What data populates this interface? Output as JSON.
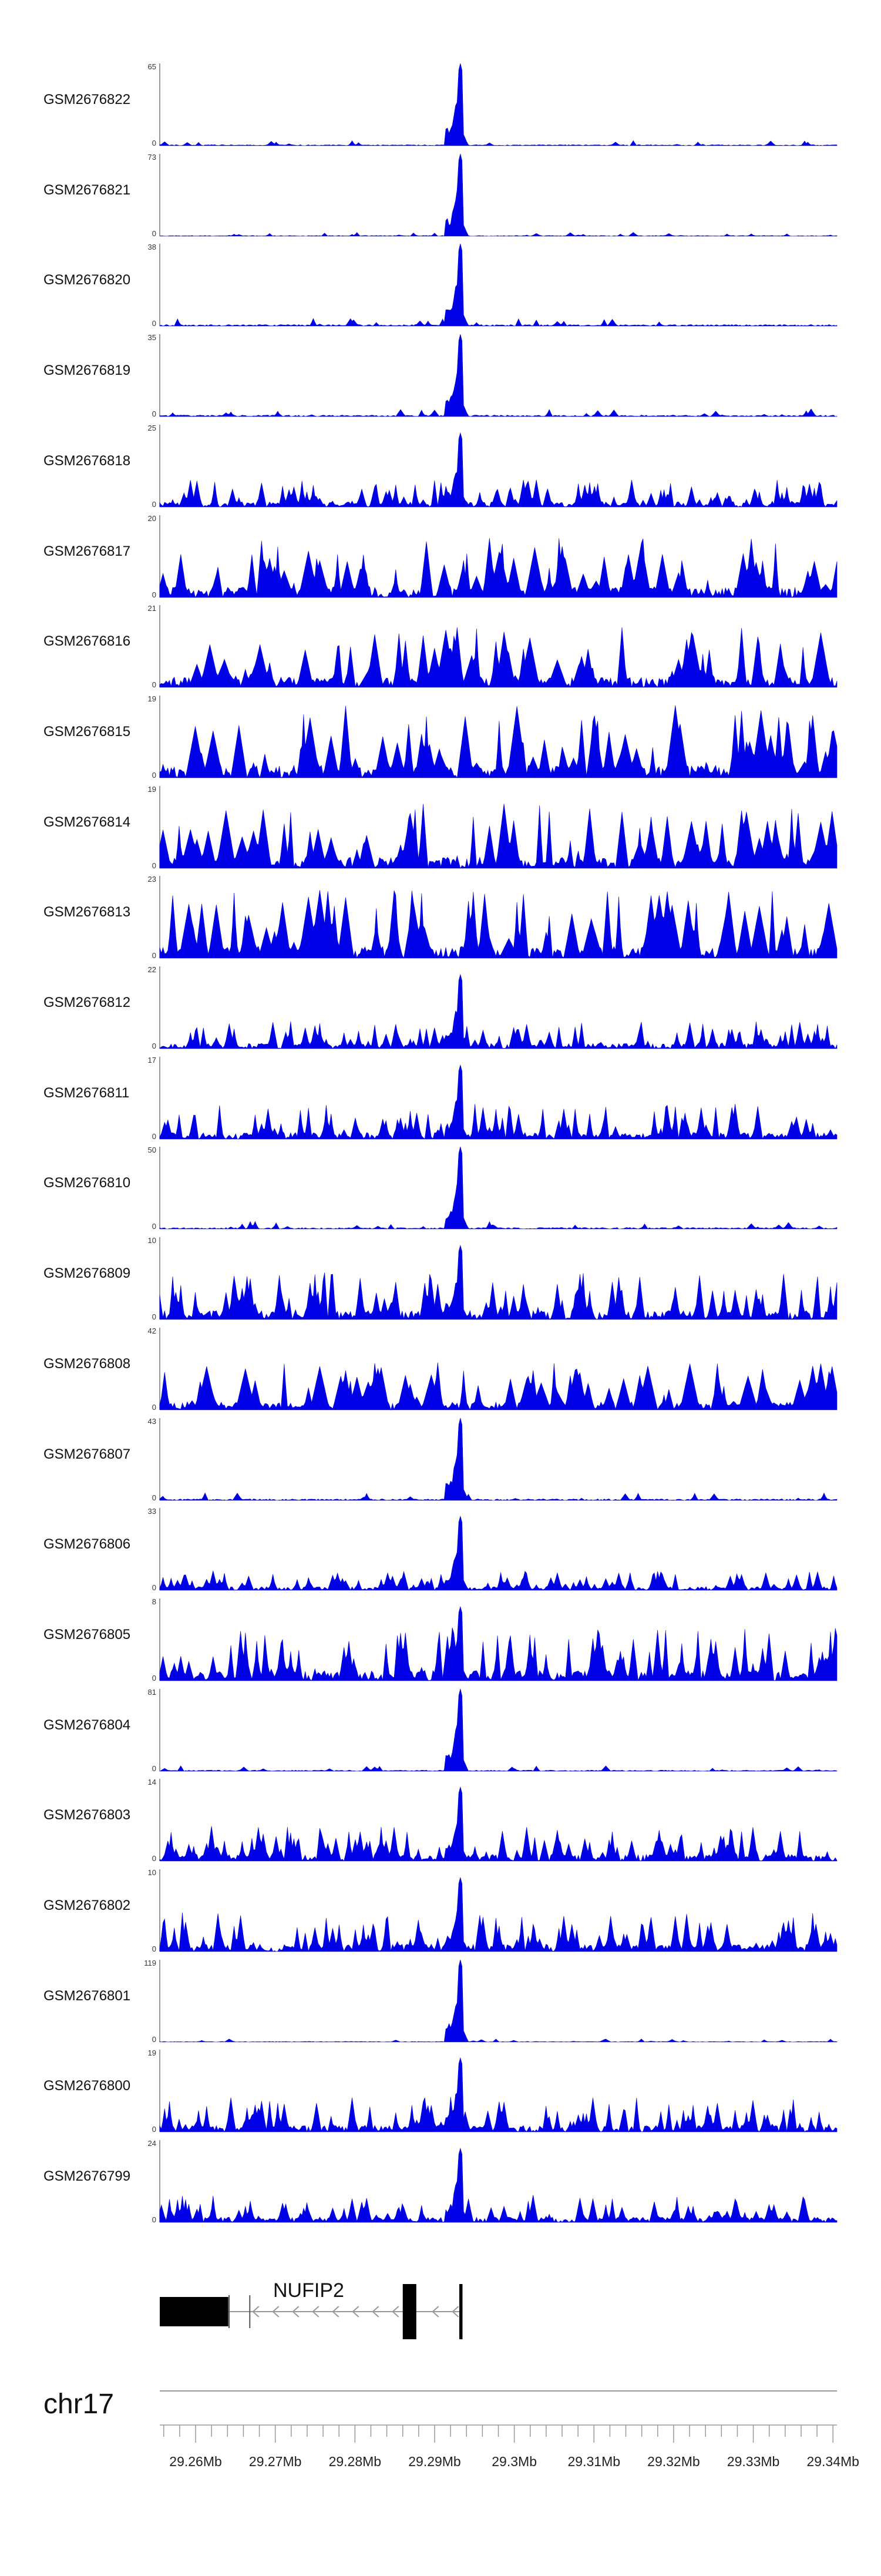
{
  "chart_data": {
    "type": "area",
    "title": "",
    "chromosome": "chr17",
    "fill_color": "#0000e6",
    "x_range_mb": [
      29.2555,
      29.3405
    ],
    "x_ticks": [
      29.26,
      29.27,
      29.28,
      29.29,
      29.3,
      29.31,
      29.32,
      29.33,
      29.34
    ],
    "x_tick_labels": [
      "29.26Mb",
      "29.27Mb",
      "29.28Mb",
      "29.29Mb",
      "29.3Mb",
      "29.31Mb",
      "29.32Mb",
      "29.33Mb",
      "29.34Mb"
    ],
    "tracks": [
      {
        "name": "GSM2676822",
        "ymax": "65",
        "ymin": "0",
        "style": "peak",
        "noise": 0.07,
        "seed": 11
      },
      {
        "name": "GSM2676821",
        "ymax": "73",
        "ymin": "0",
        "style": "peak",
        "noise": 0.05,
        "seed": 12
      },
      {
        "name": "GSM2676820",
        "ymax": "38",
        "ymin": "0",
        "style": "peak",
        "noise": 0.1,
        "seed": 13
      },
      {
        "name": "GSM2676819",
        "ymax": "35",
        "ymin": "0",
        "style": "peak",
        "noise": 0.1,
        "seed": 14
      },
      {
        "name": "GSM2676818",
        "ymax": "25",
        "ymin": "0",
        "style": "peakspiky",
        "noise": 0.35,
        "seed": 15
      },
      {
        "name": "GSM2676817",
        "ymax": "20",
        "ymin": "0",
        "style": "spiky",
        "noise": 0.7,
        "seed": 16
      },
      {
        "name": "GSM2676816",
        "ymax": "21",
        "ymin": "0",
        "style": "spiky",
        "noise": 0.7,
        "seed": 17
      },
      {
        "name": "GSM2676815",
        "ymax": "19",
        "ymin": "0",
        "style": "spiky",
        "noise": 0.85,
        "seed": 18
      },
      {
        "name": "GSM2676814",
        "ymax": "19",
        "ymin": "0",
        "style": "spiky",
        "noise": 0.75,
        "seed": 19
      },
      {
        "name": "GSM2676813",
        "ymax": "23",
        "ymin": "0",
        "style": "spiky",
        "noise": 0.8,
        "seed": 20
      },
      {
        "name": "GSM2676812",
        "ymax": "22",
        "ymin": "0",
        "style": "peakspiky",
        "noise": 0.35,
        "seed": 21
      },
      {
        "name": "GSM2676811",
        "ymax": "17",
        "ymin": "0",
        "style": "peakspiky",
        "noise": 0.45,
        "seed": 22
      },
      {
        "name": "GSM2676810",
        "ymax": "50",
        "ymin": "0",
        "style": "peak",
        "noise": 0.1,
        "seed": 23
      },
      {
        "name": "GSM2676809",
        "ymax": "10",
        "ymin": "0",
        "style": "peakspiky",
        "noise": 0.6,
        "seed": 24
      },
      {
        "name": "GSM2676808",
        "ymax": "42",
        "ymin": "0",
        "style": "spiky",
        "noise": 0.55,
        "seed": 25
      },
      {
        "name": "GSM2676807",
        "ymax": "43",
        "ymin": "0",
        "style": "peak",
        "noise": 0.1,
        "seed": 26
      },
      {
        "name": "GSM2676806",
        "ymax": "33",
        "ymin": "0",
        "style": "peakspiky",
        "noise": 0.25,
        "seed": 27
      },
      {
        "name": "GSM2676805",
        "ymax": "8",
        "ymin": "0",
        "style": "peakspiky",
        "noise": 0.7,
        "seed": 28
      },
      {
        "name": "GSM2676804",
        "ymax": "81",
        "ymin": "0",
        "style": "peak",
        "noise": 0.07,
        "seed": 29
      },
      {
        "name": "GSM2676803",
        "ymax": "14",
        "ymin": "0",
        "style": "peakspiky",
        "noise": 0.45,
        "seed": 30
      },
      {
        "name": "GSM2676802",
        "ymax": "10",
        "ymin": "0",
        "style": "peakspiky",
        "noise": 0.5,
        "seed": 31
      },
      {
        "name": "GSM2676801",
        "ymax": "119",
        "ymin": "0",
        "style": "peak",
        "noise": 0.04,
        "seed": 32
      },
      {
        "name": "GSM2676800",
        "ymax": "19",
        "ymin": "0",
        "style": "peakspiky",
        "noise": 0.45,
        "seed": 33
      },
      {
        "name": "GSM2676799",
        "ymax": "24",
        "ymin": "0",
        "style": "peakspiky",
        "noise": 0.35,
        "seed": 34
      }
    ],
    "gene": {
      "name": "NUFIP2",
      "strand": "-",
      "start_mb": 29.2555,
      "end_mb": 29.2935,
      "exons_mb": [
        [
          29.2555,
          29.2641
        ],
        [
          29.286,
          29.2877
        ],
        [
          29.2931,
          29.2935
        ]
      ],
      "utr_marks_mb": [
        29.2642,
        29.2668
      ]
    }
  }
}
